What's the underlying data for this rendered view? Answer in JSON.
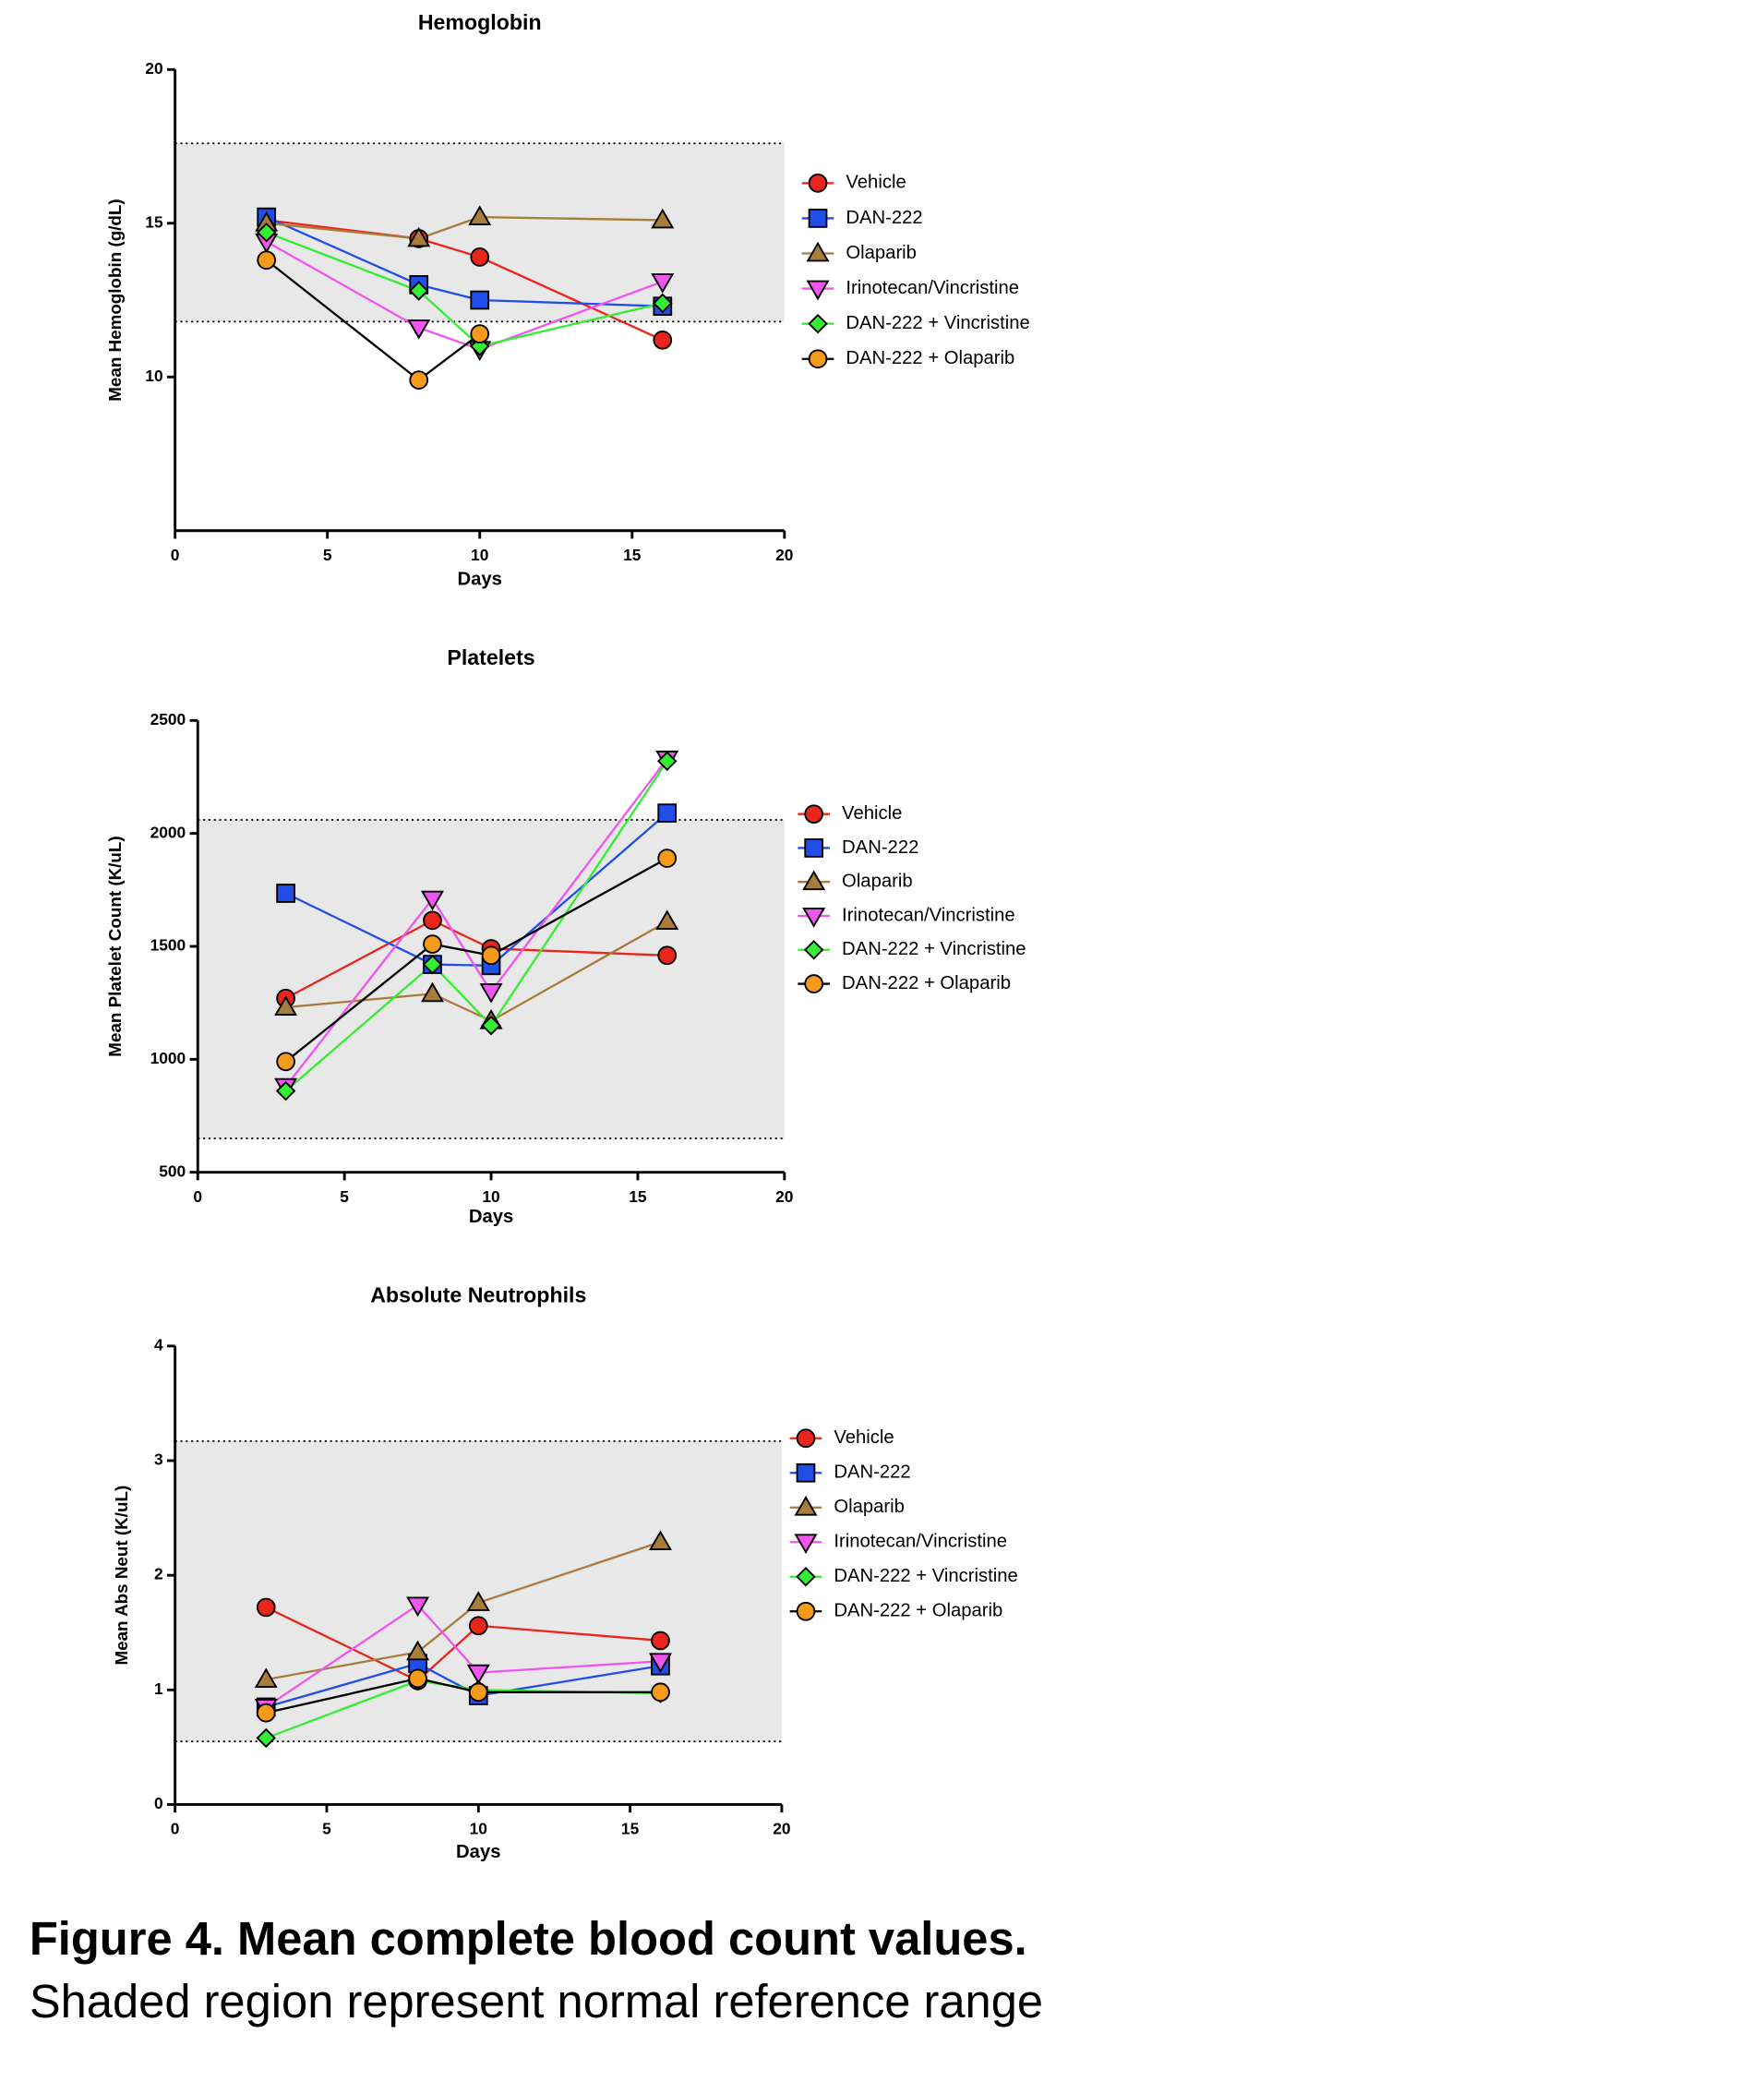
{
  "chart_data": [
    {
      "type": "line",
      "title": "Hemoglobin",
      "x_label": "Days",
      "y_label": "Mean Hemoglobin (g/dL)",
      "x": [
        3,
        8,
        10,
        16
      ],
      "xlim": [
        0,
        20
      ],
      "xticks": [
        0,
        5,
        10,
        15,
        20
      ],
      "ylim": [
        5,
        20
      ],
      "yticks": [
        10,
        15,
        20
      ],
      "reference_range": [
        11.8,
        17.6
      ],
      "series": [
        {
          "name": "Vehicle",
          "color": "#e8261c",
          "line_color": "#e8261c",
          "marker": "circle",
          "values": [
            15.1,
            14.5,
            13.9,
            11.2
          ]
        },
        {
          "name": "DAN-222",
          "color": "#1f4fe8",
          "line_color": "#1f4fe8",
          "marker": "square",
          "values": [
            15.2,
            13.0,
            12.5,
            12.3
          ]
        },
        {
          "name": "Olaparib",
          "color": "#a87c3a",
          "line_color": "#a87c3a",
          "marker": "triangle-up",
          "values": [
            15.0,
            14.5,
            15.2,
            15.1
          ]
        },
        {
          "name": "Irinotecan/Vincristine",
          "color": "#f055f0",
          "line_color": "#f055f0",
          "marker": "triangle-down",
          "values": [
            14.4,
            11.6,
            10.9,
            13.1
          ]
        },
        {
          "name": "DAN-222 + Vincristine",
          "color": "#33ee33",
          "line_color": "#33ee33",
          "marker": "diamond",
          "values": [
            14.7,
            12.8,
            11.0,
            12.4
          ]
        },
        {
          "name": "DAN-222 + Olaparib",
          "color": "#f59a1a",
          "line_color": "#000000",
          "marker": "circle",
          "values": [
            13.8,
            9.9,
            11.4,
            null
          ]
        }
      ]
    },
    {
      "type": "line",
      "title": "Platelets",
      "x_label": "Days",
      "y_label": "Mean Platelet Count (K/uL)",
      "x": [
        3,
        8,
        10,
        16
      ],
      "xlim": [
        0,
        20
      ],
      "xticks": [
        0,
        5,
        10,
        15,
        20
      ],
      "ylim": [
        500,
        2500
      ],
      "yticks": [
        500,
        1000,
        1500,
        2000,
        2500
      ],
      "reference_range": [
        650,
        2060
      ],
      "series": [
        {
          "name": "Vehicle",
          "color": "#e8261c",
          "line_color": "#e8261c",
          "marker": "circle",
          "values": [
            1270,
            1615,
            1490,
            1460
          ]
        },
        {
          "name": "DAN-222",
          "color": "#1f4fe8",
          "line_color": "#1f4fe8",
          "marker": "square",
          "values": [
            1735,
            1420,
            1415,
            2090
          ]
        },
        {
          "name": "Olaparib",
          "color": "#a87c3a",
          "line_color": "#a87c3a",
          "marker": "triangle-up",
          "values": [
            1230,
            1290,
            1170,
            1610
          ]
        },
        {
          "name": "Irinotecan/Vincristine",
          "color": "#f055f0",
          "line_color": "#f055f0",
          "marker": "triangle-down",
          "values": [
            880,
            1710,
            1300,
            2330
          ]
        },
        {
          "name": "DAN-222 + Vincristine",
          "color": "#33ee33",
          "line_color": "#33ee33",
          "marker": "diamond",
          "values": [
            860,
            1420,
            1150,
            2320
          ]
        },
        {
          "name": "DAN-222 + Olaparib",
          "color": "#f59a1a",
          "line_color": "#000000",
          "marker": "circle",
          "values": [
            990,
            1510,
            1460,
            1890
          ]
        }
      ]
    },
    {
      "type": "line",
      "title": "Absolute Neutrophils",
      "x_label": "Days",
      "y_label": "Mean Abs Neut (K/uL)",
      "x": [
        3,
        8,
        10,
        16
      ],
      "xlim": [
        0,
        20
      ],
      "xticks": [
        0,
        5,
        10,
        15,
        20
      ],
      "ylim": [
        0,
        4
      ],
      "yticks": [
        0,
        1,
        2,
        3,
        4
      ],
      "reference_range": [
        0.55,
        3.17
      ],
      "series": [
        {
          "name": "Vehicle",
          "color": "#e8261c",
          "line_color": "#e8261c",
          "marker": "circle",
          "values": [
            1.72,
            1.08,
            1.56,
            1.43
          ]
        },
        {
          "name": "DAN-222",
          "color": "#1f4fe8",
          "line_color": "#1f4fe8",
          "marker": "square",
          "values": [
            0.85,
            1.23,
            0.95,
            1.21
          ]
        },
        {
          "name": "Olaparib",
          "color": "#a87c3a",
          "line_color": "#a87c3a",
          "marker": "triangle-up",
          "values": [
            1.09,
            1.33,
            1.76,
            2.29
          ]
        },
        {
          "name": "Irinotecan/Vincristine",
          "color": "#f055f0",
          "line_color": "#f055f0",
          "marker": "triangle-down",
          "values": [
            0.85,
            1.74,
            1.15,
            1.25
          ]
        },
        {
          "name": "DAN-222 + Vincristine",
          "color": "#33ee33",
          "line_color": "#33ee33",
          "marker": "diamond",
          "values": [
            0.58,
            1.08,
            1.0,
            0.97
          ]
        },
        {
          "name": "DAN-222 + Olaparib",
          "color": "#f59a1a",
          "line_color": "#000000",
          "marker": "circle",
          "values": [
            0.8,
            1.1,
            0.98,
            0.98
          ]
        }
      ]
    }
  ],
  "caption": {
    "title": "Figure 4. Mean complete blood count values.",
    "text": "Shaded region represent normal reference range"
  }
}
